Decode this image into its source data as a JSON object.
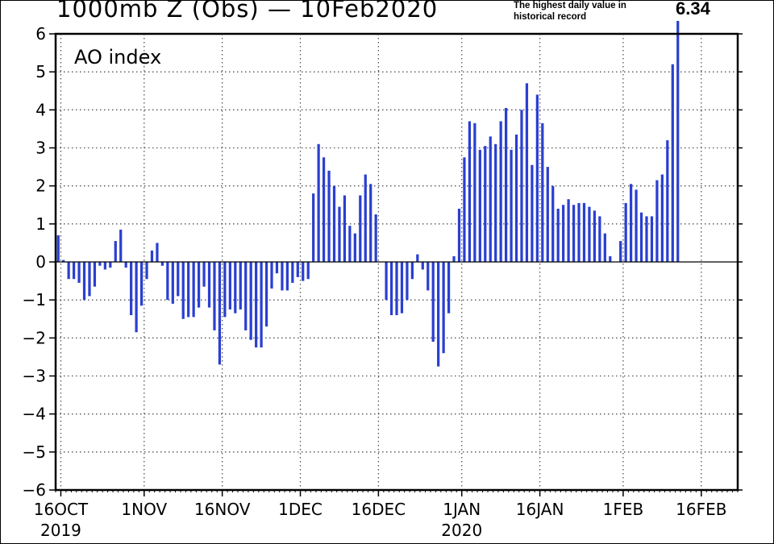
{
  "title": "1000mb Z (Obs) — 10Feb2020",
  "annotation": {
    "note": "The highest daily value in historical record",
    "value_label": "6.34"
  },
  "chart_data": {
    "type": "bar",
    "series_label": "AO index",
    "color": "#2a3fd0",
    "x_start": "2019-10-15",
    "ylim": [
      -6,
      6
    ],
    "yticks": [
      6,
      5,
      4,
      3,
      2,
      1,
      0,
      -1,
      -2,
      -3,
      -4,
      -5,
      -6
    ],
    "grid": true,
    "grid_style": "dotted",
    "xticks": [
      {
        "date": "2019-10-16",
        "label": "16OCT",
        "sublabel": "2019"
      },
      {
        "date": "2019-11-01",
        "label": "1NOV",
        "sublabel": ""
      },
      {
        "date": "2019-11-16",
        "label": "16NOV",
        "sublabel": ""
      },
      {
        "date": "2019-12-01",
        "label": "1DEC",
        "sublabel": ""
      },
      {
        "date": "2019-12-16",
        "label": "16DEC",
        "sublabel": ""
      },
      {
        "date": "2020-01-01",
        "label": "1JAN",
        "sublabel": "2020"
      },
      {
        "date": "2020-01-16",
        "label": "16JAN",
        "sublabel": ""
      },
      {
        "date": "2020-02-01",
        "label": "1FEB",
        "sublabel": ""
      },
      {
        "date": "2020-02-16",
        "label": "16FEB",
        "sublabel": ""
      }
    ],
    "x_end": "2020-02-23",
    "values": [
      0.7,
      0.05,
      -0.45,
      -0.45,
      -0.55,
      -1.0,
      -0.9,
      -0.65,
      -0.1,
      -0.2,
      -0.15,
      0.55,
      0.85,
      -0.15,
      -1.4,
      -1.85,
      -1.15,
      -0.45,
      0.3,
      0.5,
      -0.1,
      -1.0,
      -1.1,
      -0.9,
      -1.5,
      -1.45,
      -1.45,
      -1.2,
      -0.65,
      -1.2,
      -1.8,
      -2.7,
      -1.45,
      -1.25,
      -1.35,
      -1.25,
      -1.8,
      -2.05,
      -2.25,
      -2.25,
      -1.7,
      -0.7,
      -0.3,
      -0.75,
      -0.75,
      -0.55,
      -0.4,
      -0.5,
      -0.45,
      1.8,
      3.1,
      2.75,
      2.4,
      2.0,
      1.45,
      1.75,
      0.95,
      0.75,
      1.75,
      2.3,
      2.05,
      1.25,
      null,
      -1.0,
      -1.4,
      -1.4,
      -1.35,
      -1.0,
      -0.45,
      0.2,
      -0.2,
      -0.75,
      -2.1,
      -2.75,
      -2.4,
      -1.35,
      0.15,
      1.4,
      2.75,
      3.7,
      3.65,
      2.95,
      3.05,
      3.3,
      3.1,
      3.7,
      4.05,
      2.95,
      3.35,
      4.0,
      4.7,
      2.55,
      4.4,
      3.65,
      2.5,
      2.0,
      1.4,
      1.5,
      1.65,
      1.5,
      1.55,
      1.55,
      1.45,
      1.35,
      1.2,
      0.75,
      0.15,
      null,
      0.55,
      1.55,
      2.05,
      1.9,
      1.3,
      1.2,
      1.2,
      2.15,
      2.3,
      3.2,
      5.2,
      6.34
    ]
  }
}
